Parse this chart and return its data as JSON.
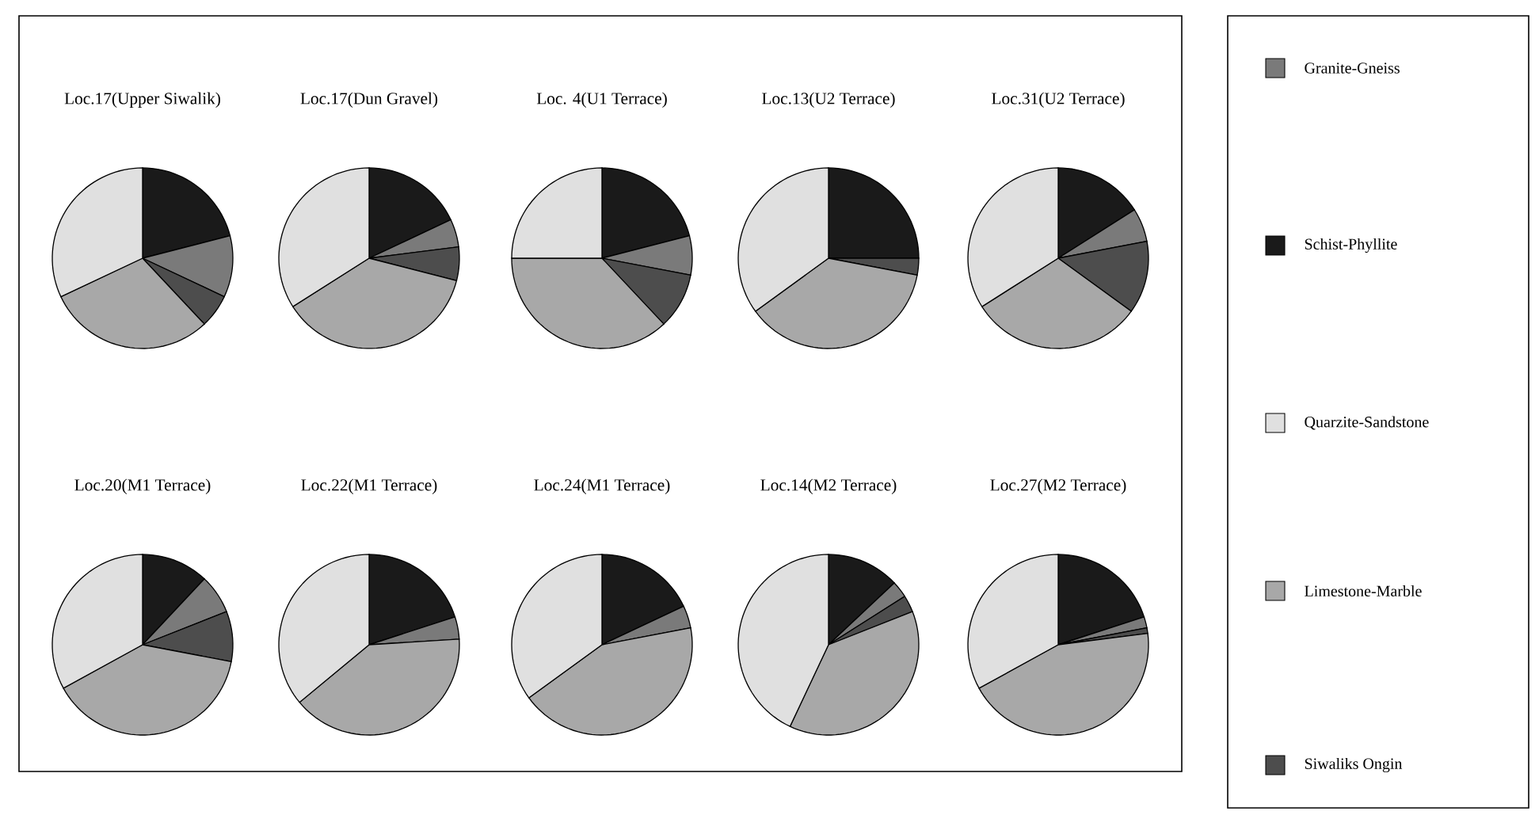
{
  "chart_data": [
    {
      "type": "pie",
      "title": "Loc.17(Upper Siwalik)",
      "legend": "right",
      "categories": [
        "Granite-Gneiss",
        "Schist-Phyllite",
        "Quarzite-Sandstone",
        "Limestone-Marble",
        "Siwaliks Ongin"
      ],
      "values": [
        11,
        21,
        32,
        30,
        6
      ],
      "colors": [
        "#7a7a7a",
        "#1a1a1a",
        "#e0e0e0",
        "#a8a8a8",
        "#4d4d4d"
      ]
    },
    {
      "type": "pie",
      "title": "Loc.17(Dun Gravel)",
      "values": [
        5,
        18,
        34,
        37,
        6
      ],
      "colors": [
        "#7a7a7a",
        "#1a1a1a",
        "#e0e0e0",
        "#a8a8a8",
        "#4d4d4d"
      ]
    },
    {
      "type": "pie",
      "title": "Loc. 4(U1 Terrace)",
      "values": [
        7,
        21,
        25,
        37,
        10
      ],
      "colors": [
        "#7a7a7a",
        "#1a1a1a",
        "#e0e0e0",
        "#a8a8a8",
        "#4d4d4d"
      ]
    },
    {
      "type": "pie",
      "title": "Loc.13(U2 Terrace)",
      "values": [
        0,
        25,
        35,
        37,
        3
      ],
      "colors": [
        "#7a7a7a",
        "#1a1a1a",
        "#e0e0e0",
        "#a8a8a8",
        "#4d4d4d"
      ]
    },
    {
      "type": "pie",
      "title": "Loc.31(U2 Terrace)",
      "values": [
        6,
        16,
        34,
        31,
        13
      ],
      "colors": [
        "#7a7a7a",
        "#1a1a1a",
        "#e0e0e0",
        "#a8a8a8",
        "#4d4d4d"
      ]
    },
    {
      "type": "pie",
      "title": "Loc.20(M1 Terrace)",
      "values": [
        7,
        12,
        33,
        39,
        9
      ],
      "colors": [
        "#7a7a7a",
        "#1a1a1a",
        "#e0e0e0",
        "#a8a8a8",
        "#4d4d4d"
      ]
    },
    {
      "type": "pie",
      "title": "Loc.22(M1 Terrace)",
      "values": [
        4,
        20,
        36,
        40,
        0
      ],
      "colors": [
        "#7a7a7a",
        "#1a1a1a",
        "#e0e0e0",
        "#a8a8a8",
        "#4d4d4d"
      ]
    },
    {
      "type": "pie",
      "title": "Loc.24(M1 Terrace)",
      "values": [
        4,
        18,
        35,
        43,
        0
      ],
      "colors": [
        "#7a7a7a",
        "#1a1a1a",
        "#e0e0e0",
        "#a8a8a8",
        "#4d4d4d"
      ]
    },
    {
      "type": "pie",
      "title": "Loc.14(M2 Terrace)",
      "values": [
        3,
        13,
        43,
        38,
        3
      ],
      "colors": [
        "#7a7a7a",
        "#1a1a1a",
        "#e0e0e0",
        "#a8a8a8",
        "#4d4d4d"
      ]
    },
    {
      "type": "pie",
      "title": "Loc.27(M2 Terrace)",
      "values": [
        2,
        20,
        33,
        44,
        1
      ],
      "colors": [
        "#7a7a7a",
        "#1a1a1a",
        "#e0e0e0",
        "#a8a8a8",
        "#4d4d4d"
      ]
    }
  ]
}
